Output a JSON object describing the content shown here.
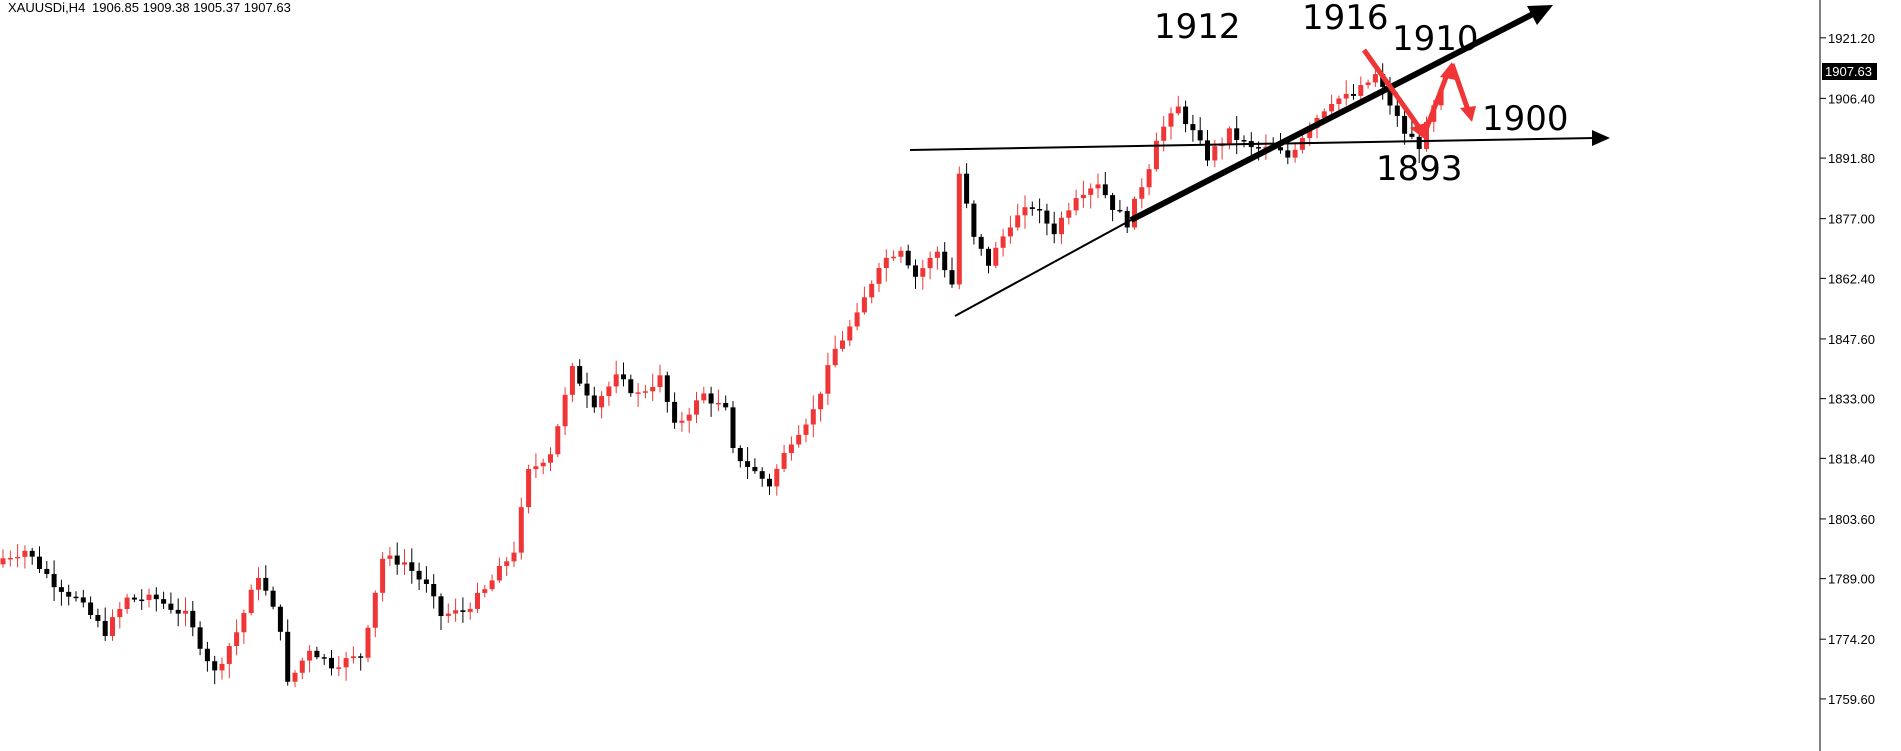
{
  "header": {
    "symbol": "XAUUSDi,H4",
    "ohlc": "1906.85 1909.38 1905.37 1907.63"
  },
  "chart_data": {
    "type": "candlestick",
    "symbol": "XAUUSDi",
    "timeframe": "H4",
    "ylim": [
      1752,
      1928
    ],
    "y_ticks": [
      "1921.20",
      "1906.40",
      "1891.80",
      "1877.00",
      "1862.40",
      "1847.60",
      "1833.00",
      "1818.40",
      "1803.60",
      "1789.00",
      "1774.20",
      "1759.60"
    ],
    "current_price": "1907.63",
    "grid": false,
    "colors": {
      "up": "#ef3535",
      "down": "#000000",
      "annotation_arrow": "#ef3535"
    },
    "key_points": [
      {
        "i": 0,
        "c": 1794
      },
      {
        "i": 3,
        "c": 1796
      },
      {
        "i": 7,
        "c": 1788
      },
      {
        "i": 10,
        "c": 1784
      },
      {
        "i": 14,
        "c": 1776
      },
      {
        "i": 17,
        "c": 1784
      },
      {
        "i": 21,
        "c": 1784
      },
      {
        "i": 25,
        "c": 1780
      },
      {
        "i": 29,
        "c": 1766
      },
      {
        "i": 32,
        "c": 1776
      },
      {
        "i": 35,
        "c": 1790
      },
      {
        "i": 38,
        "c": 1777
      },
      {
        "i": 39,
        "c": 1763
      },
      {
        "i": 42,
        "c": 1772
      },
      {
        "i": 45,
        "c": 1768
      },
      {
        "i": 49,
        "c": 1770
      },
      {
        "i": 52,
        "c": 1794
      },
      {
        "i": 55,
        "c": 1793
      },
      {
        "i": 58,
        "c": 1787
      },
      {
        "i": 60,
        "c": 1780
      },
      {
        "i": 63,
        "c": 1781
      },
      {
        "i": 66,
        "c": 1786
      },
      {
        "i": 70,
        "c": 1796
      },
      {
        "i": 72,
        "c": 1815
      },
      {
        "i": 75,
        "c": 1820
      },
      {
        "i": 78,
        "c": 1840
      },
      {
        "i": 81,
        "c": 1832
      },
      {
        "i": 84,
        "c": 1838
      },
      {
        "i": 87,
        "c": 1834
      },
      {
        "i": 90,
        "c": 1838
      },
      {
        "i": 92,
        "c": 1826
      },
      {
        "i": 96,
        "c": 1834
      },
      {
        "i": 99,
        "c": 1830
      },
      {
        "i": 100,
        "c": 1820
      },
      {
        "i": 103,
        "c": 1815
      },
      {
        "i": 105,
        "c": 1812
      },
      {
        "i": 108,
        "c": 1823
      },
      {
        "i": 111,
        "c": 1830
      },
      {
        "i": 114,
        "c": 1845
      },
      {
        "i": 117,
        "c": 1853
      },
      {
        "i": 120,
        "c": 1866
      },
      {
        "i": 123,
        "c": 1870
      },
      {
        "i": 125,
        "c": 1863
      },
      {
        "i": 128,
        "c": 1869
      },
      {
        "i": 130,
        "c": 1861
      },
      {
        "i": 131,
        "c": 1888
      },
      {
        "i": 133,
        "c": 1872
      },
      {
        "i": 135,
        "c": 1866
      },
      {
        "i": 138,
        "c": 1876
      },
      {
        "i": 141,
        "c": 1880
      },
      {
        "i": 144,
        "c": 1874
      },
      {
        "i": 147,
        "c": 1883
      },
      {
        "i": 150,
        "c": 1886
      },
      {
        "i": 152,
        "c": 1880
      },
      {
        "i": 154,
        "c": 1876
      },
      {
        "i": 157,
        "c": 1890
      },
      {
        "i": 158,
        "c": 1897
      },
      {
        "i": 161,
        "c": 1904
      },
      {
        "i": 163,
        "c": 1898
      },
      {
        "i": 165,
        "c": 1892
      },
      {
        "i": 168,
        "c": 1898
      },
      {
        "i": 171,
        "c": 1894
      },
      {
        "i": 174,
        "c": 1894
      },
      {
        "i": 176,
        "c": 1892
      },
      {
        "i": 179,
        "c": 1900
      },
      {
        "i": 182,
        "c": 1906
      },
      {
        "i": 185,
        "c": 1907
      },
      {
        "i": 188,
        "c": 1912
      },
      {
        "i": 190,
        "c": 1905
      },
      {
        "i": 192,
        "c": 1898
      },
      {
        "i": 194,
        "c": 1895
      },
      {
        "i": 196,
        "c": 1904
      },
      {
        "i": 197,
        "c": 1907.63
      }
    ],
    "annotations": [
      "1912",
      "1916",
      "1910",
      "1900",
      "1893"
    ]
  },
  "annotations": {
    "a1912": "1912",
    "a1916": "1916",
    "a1910": "1910",
    "a1900": "1900",
    "a1893": "1893"
  }
}
